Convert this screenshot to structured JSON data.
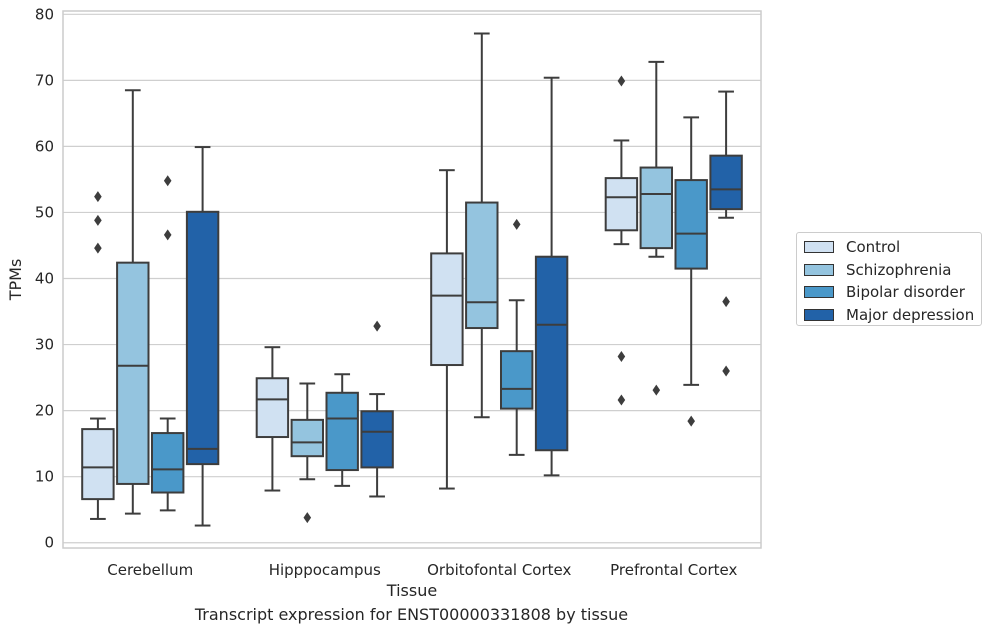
{
  "chart_data": {
    "type": "box",
    "xlabel": "Tissue",
    "ylabel": "TPMs",
    "caption": "Transcript expression for ENST00000331808 by tissue",
    "ylim": [
      -0.8,
      80.5
    ],
    "yticks": [
      0,
      10,
      20,
      30,
      40,
      50,
      60,
      70,
      80
    ],
    "grid": true,
    "legend_position": "right",
    "categories": [
      "Cerebellum",
      "Hipppocampus",
      "Orbitofontal Cortex",
      "Prefrontal Cortex"
    ],
    "series": [
      {
        "name": "Control",
        "color": "#d0e1f2",
        "boxes": [
          {
            "whisker_low": 3.6,
            "q1": 6.6,
            "median": 11.4,
            "q3": 17.2,
            "whisker_high": 18.8,
            "outliers": [
              44.6,
              48.8,
              52.4
            ]
          },
          {
            "whisker_low": 7.9,
            "q1": 16.0,
            "median": 21.7,
            "q3": 24.9,
            "whisker_high": 29.6,
            "outliers": []
          },
          {
            "whisker_low": 8.2,
            "q1": 26.9,
            "median": 37.4,
            "q3": 43.8,
            "whisker_high": 56.4,
            "outliers": []
          },
          {
            "whisker_low": 45.2,
            "q1": 47.3,
            "median": 52.3,
            "q3": 55.2,
            "whisker_high": 60.9,
            "outliers": [
              69.9,
              28.2,
              21.6
            ]
          }
        ]
      },
      {
        "name": "Schizophrenia",
        "color": "#94c4df",
        "boxes": [
          {
            "whisker_low": 4.4,
            "q1": 8.9,
            "median": 26.8,
            "q3": 42.4,
            "whisker_high": 68.5,
            "outliers": []
          },
          {
            "whisker_low": 9.6,
            "q1": 13.1,
            "median": 15.2,
            "q3": 18.6,
            "whisker_high": 24.1,
            "outliers": [
              3.8
            ]
          },
          {
            "whisker_low": 19.0,
            "q1": 32.5,
            "median": 36.4,
            "q3": 51.5,
            "whisker_high": 77.1,
            "outliers": []
          },
          {
            "whisker_low": 43.3,
            "q1": 44.6,
            "median": 52.8,
            "q3": 56.8,
            "whisker_high": 72.8,
            "outliers": [
              23.1
            ]
          }
        ]
      },
      {
        "name": "Bipolar disorder",
        "color": "#4a98c9",
        "boxes": [
          {
            "whisker_low": 4.9,
            "q1": 7.6,
            "median": 11.1,
            "q3": 16.6,
            "whisker_high": 18.8,
            "outliers": [
              46.6,
              54.8
            ]
          },
          {
            "whisker_low": 8.6,
            "q1": 11.0,
            "median": 18.8,
            "q3": 22.7,
            "whisker_high": 25.5,
            "outliers": []
          },
          {
            "whisker_low": 13.3,
            "q1": 20.3,
            "median": 23.3,
            "q3": 29.0,
            "whisker_high": 36.7,
            "outliers": [
              48.2
            ]
          },
          {
            "whisker_low": 23.9,
            "q1": 41.5,
            "median": 46.8,
            "q3": 54.9,
            "whisker_high": 64.4,
            "outliers": [
              18.4
            ]
          }
        ]
      },
      {
        "name": "Major depression",
        "color": "#2262a8",
        "boxes": [
          {
            "whisker_low": 2.6,
            "q1": 11.9,
            "median": 14.2,
            "q3": 50.1,
            "whisker_high": 59.9,
            "outliers": []
          },
          {
            "whisker_low": 7.0,
            "q1": 11.4,
            "median": 16.8,
            "q3": 19.9,
            "whisker_high": 22.5,
            "outliers": [
              32.8
            ]
          },
          {
            "whisker_low": 10.2,
            "q1": 14.0,
            "median": 33.0,
            "q3": 43.3,
            "whisker_high": 70.4,
            "outliers": []
          },
          {
            "whisker_low": 49.2,
            "q1": 50.5,
            "median": 53.5,
            "q3": 58.6,
            "whisker_high": 68.3,
            "outliers": [
              36.5,
              26.0
            ]
          }
        ]
      }
    ]
  }
}
